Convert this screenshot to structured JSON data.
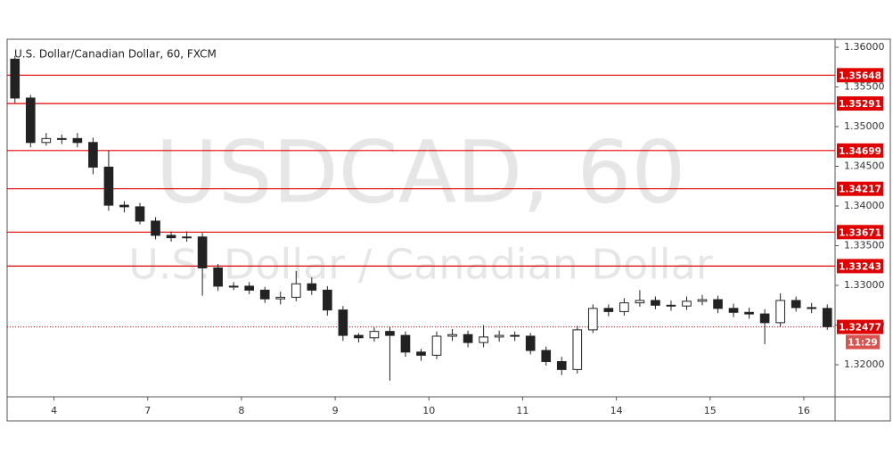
{
  "chart_data": {
    "type": "candlestick",
    "title": "U.S. Dollar/Canadian Dollar, 60, FXCM",
    "watermark": [
      "USDCAD, 60",
      "U.S. Dollar / Canadian Dollar"
    ],
    "x": [
      -10,
      -6,
      -2,
      2,
      6,
      10,
      14,
      18,
      22,
      26,
      30,
      34,
      38,
      42,
      46,
      50,
      54,
      58,
      62,
      66,
      70,
      74,
      78,
      82,
      86,
      90,
      94,
      98,
      102,
      106,
      110,
      114,
      118,
      122,
      126,
      130,
      134,
      138,
      142,
      146,
      150,
      154,
      158,
      162,
      166,
      170,
      174,
      178,
      182,
      186,
      190,
      194,
      198
    ],
    "open": [
      1.3585,
      1.3536,
      1.348,
      1.3485,
      1.3485,
      1.348,
      1.3449,
      1.3401,
      1.3399,
      1.3381,
      1.3363,
      1.336,
      1.3361,
      1.3322,
      1.3299,
      1.3299,
      1.3294,
      1.3283,
      1.3285,
      1.3302,
      1.3294,
      1.3269,
      1.3237,
      1.3234,
      1.3242,
      1.3237,
      1.3216,
      1.3212,
      1.3236,
      1.3238,
      1.3228,
      1.3235,
      1.3237,
      1.3236,
      1.3218,
      1.3204,
      1.3194,
      1.3244,
      1.3271,
      1.3267,
      1.3278,
      1.3281,
      1.3275,
      1.3274,
      1.328,
      1.3282,
      1.3271,
      1.3266,
      1.3264,
      1.3253,
      1.3281,
      1.3272,
      1.3271
    ],
    "high": [
      1.3589,
      1.354,
      1.3492,
      1.349,
      1.3492,
      1.3486,
      1.347,
      1.3406,
      1.3404,
      1.3386,
      1.3368,
      1.3368,
      1.3366,
      1.3327,
      1.3304,
      1.3304,
      1.3298,
      1.3292,
      1.3318,
      1.331,
      1.3299,
      1.3274,
      1.324,
      1.3247,
      1.3248,
      1.3242,
      1.322,
      1.3242,
      1.3245,
      1.3243,
      1.325,
      1.3243,
      1.3242,
      1.324,
      1.3223,
      1.321,
      1.3249,
      1.3276,
      1.3276,
      1.3284,
      1.3294,
      1.3286,
      1.3281,
      1.3286,
      1.3288,
      1.3287,
      1.3277,
      1.3272,
      1.327,
      1.329,
      1.3286,
      1.3278,
      1.3276
    ],
    "low": [
      1.353,
      1.3474,
      1.3476,
      1.3478,
      1.3474,
      1.344,
      1.3394,
      1.3392,
      1.3377,
      1.3358,
      1.3355,
      1.3355,
      1.3287,
      1.3293,
      1.3294,
      1.3289,
      1.3278,
      1.3276,
      1.328,
      1.3288,
      1.3262,
      1.323,
      1.3228,
      1.3229,
      1.318,
      1.321,
      1.3205,
      1.3207,
      1.323,
      1.3222,
      1.3222,
      1.3229,
      1.323,
      1.3213,
      1.3199,
      1.3187,
      1.3189,
      1.324,
      1.3261,
      1.3262,
      1.3273,
      1.327,
      1.3268,
      1.3269,
      1.3275,
      1.3265,
      1.326,
      1.3258,
      1.3226,
      1.3248,
      1.3267,
      1.3265,
      1.3244
    ],
    "close": [
      1.3536,
      1.348,
      1.3485,
      1.3485,
      1.348,
      1.3449,
      1.3401,
      1.3399,
      1.3381,
      1.3363,
      1.336,
      1.3361,
      1.3322,
      1.3299,
      1.3299,
      1.3294,
      1.3283,
      1.3285,
      1.3302,
      1.3294,
      1.3269,
      1.3237,
      1.3234,
      1.3242,
      1.3237,
      1.3216,
      1.3212,
      1.3236,
      1.3238,
      1.3228,
      1.3235,
      1.3237,
      1.3236,
      1.3218,
      1.3204,
      1.3194,
      1.3244,
      1.3271,
      1.3267,
      1.3278,
      1.3281,
      1.3275,
      1.3274,
      1.328,
      1.3282,
      1.3271,
      1.3266,
      1.3264,
      1.3253,
      1.3281,
      1.3272,
      1.3271,
      1.3248
    ],
    "up_color": "#ffffff",
    "down_color": "#222222",
    "level_color": "#e00000",
    "xlim": [
      -12,
      200
    ],
    "ylim": [
      1.31596,
      1.36101
    ],
    "xticks": [
      {
        "value": 0,
        "label": "4"
      },
      {
        "value": 24,
        "label": "7"
      },
      {
        "value": 48,
        "label": "8"
      },
      {
        "value": 72,
        "label": "9"
      },
      {
        "value": 96,
        "label": "10"
      },
      {
        "value": 120,
        "label": "11"
      },
      {
        "value": 144,
        "label": "14"
      },
      {
        "value": 168,
        "label": "15"
      },
      {
        "value": 192,
        "label": "16"
      }
    ],
    "yticks": [
      {
        "value": 1.36,
        "label": "1.36000"
      },
      {
        "value": 1.355,
        "label": "1.35500"
      },
      {
        "value": 1.35,
        "label": "1.35000"
      },
      {
        "value": 1.345,
        "label": "1.34500"
      },
      {
        "value": 1.34,
        "label": "1.34000"
      },
      {
        "value": 1.335,
        "label": "1.33500"
      },
      {
        "value": 1.33,
        "label": "1.33000"
      },
      {
        "value": 1.325,
        "label": "1.32500"
      },
      {
        "value": 1.32,
        "label": "1.32000"
      }
    ],
    "levels": [
      {
        "value": 1.35648,
        "label": "1.35648"
      },
      {
        "value": 1.35291,
        "label": "1.35291"
      },
      {
        "value": 1.34699,
        "label": "1.34699"
      },
      {
        "value": 1.34217,
        "label": "1.34217"
      },
      {
        "value": 1.33671,
        "label": "1.33671"
      },
      {
        "value": 1.33243,
        "label": "1.33243"
      }
    ],
    "current_price": {
      "value": 1.32477,
      "label": "1.32477"
    },
    "countdown": "11:29"
  }
}
